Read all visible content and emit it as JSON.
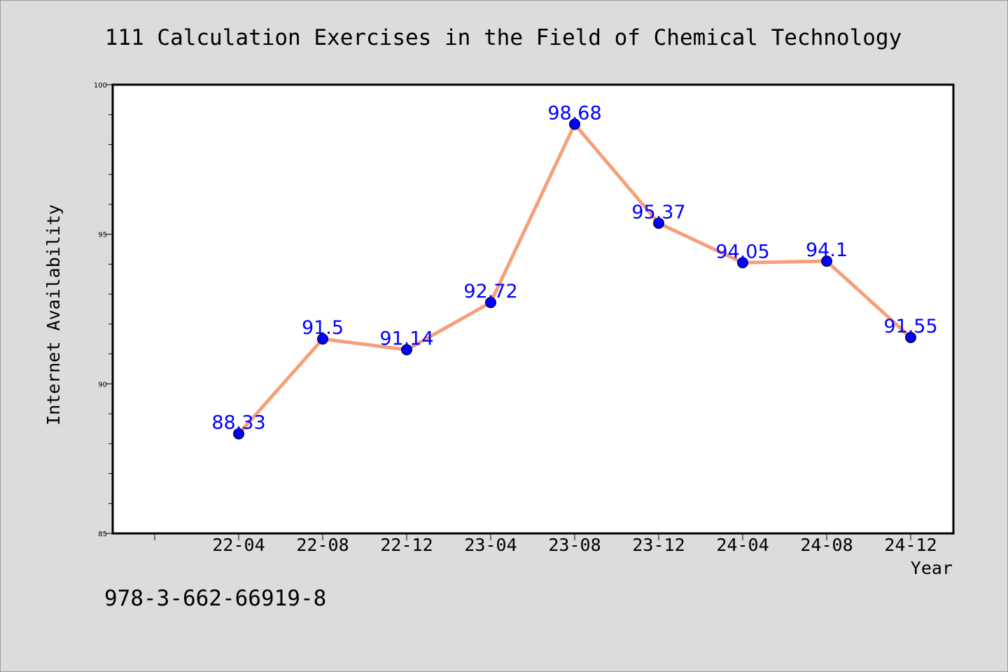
{
  "chart_data": {
    "type": "line",
    "title": "111 Calculation Exercises in the Field of Chemical Technology",
    "xlabel": "Year",
    "ylabel": "Internet Availability",
    "categories": [
      "22-04",
      "22-08",
      "22-12",
      "23-04",
      "23-08",
      "23-12",
      "24-04",
      "24-08",
      "24-12"
    ],
    "values": [
      88.33,
      91.5,
      91.14,
      92.72,
      98.68,
      95.37,
      94.05,
      94.1,
      91.55
    ],
    "data_labels": [
      "88.33",
      "91.5",
      "91.14",
      "92.72",
      "98.68",
      "95.37",
      "94.05",
      "94.1",
      "91.55"
    ],
    "ylim": [
      85,
      100
    ],
    "yticks": [
      85,
      90,
      95,
      100
    ],
    "ytick_labels": [
      "85",
      "90",
      "95",
      "100"
    ],
    "grid": false,
    "legend": "none",
    "line_color": "#f5a07a",
    "marker_color": "#0000ff",
    "label_color": "#0000ff",
    "footer_text": "978-3-662-66919-8"
  }
}
